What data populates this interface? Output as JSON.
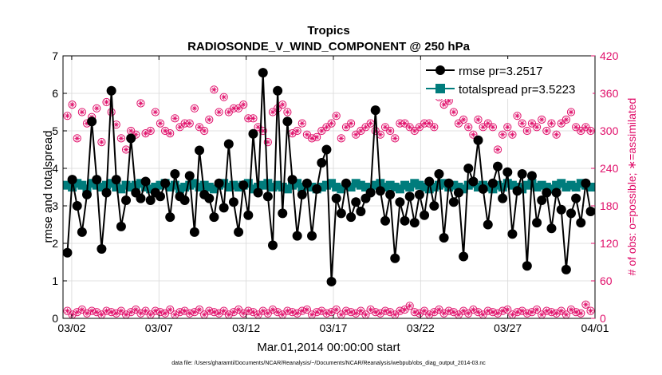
{
  "chart_data": {
    "type": "line",
    "title": "Tropics",
    "subtitle": "RADIOSONDE_V_WIND_COMPONENT @ 250 hPa",
    "xlabel": "Mar.01,2014 00:00:00 start",
    "ylabel": "rmse and totalspread",
    "ylabel_right": "# of obs: o=possible; ∗=assimilated",
    "footnote": "data file: /Users/gharamti/Documents/NCAR/Reanalysis/~/Documents/NCAR/Reanalysis/webpub/obs_diag_output_2014-03.nc",
    "xlim": [
      1.5,
      32.0
    ],
    "ylim": [
      0,
      7
    ],
    "ylim_right": [
      0,
      420
    ],
    "xticks": [
      2,
      7,
      12,
      17,
      22,
      27,
      32
    ],
    "xtick_labels": [
      "03/02",
      "03/07",
      "03/12",
      "03/17",
      "03/22",
      "03/27",
      "04/01"
    ],
    "yticks": [
      0,
      1,
      2,
      3,
      4,
      5,
      6,
      7
    ],
    "yticks_right": [
      0,
      60,
      120,
      180,
      240,
      300,
      360,
      420
    ],
    "legend_position": "top-right",
    "series": [
      {
        "name": "rmse pr=3.2517",
        "color": "#000000",
        "values": [
          1.75,
          3.7,
          3.0,
          2.3,
          3.3,
          5.25,
          3.7,
          1.85,
          3.35,
          6.07,
          3.7,
          2.45,
          3.15,
          4.8,
          3.35,
          3.2,
          3.65,
          3.15,
          3.35,
          3.25,
          3.6,
          2.7,
          3.85,
          3.25,
          3.15,
          3.8,
          2.3,
          4.48,
          3.3,
          3.2,
          2.7,
          3.6,
          2.95,
          4.65,
          3.1,
          2.3,
          3.55,
          2.75,
          4.92,
          3.35,
          6.55,
          3.25,
          1.95,
          6.07,
          2.8,
          5.25,
          3.7,
          2.2,
          3.3,
          3.6,
          2.2,
          3.45,
          4.15,
          4.5,
          0.98,
          3.2,
          2.8,
          3.6,
          2.7,
          3.1,
          2.85,
          3.2,
          3.35,
          5.55,
          3.4,
          2.6,
          3.3,
          1.6,
          3.1,
          2.6,
          3.25,
          2.55,
          3.3,
          2.75,
          3.65,
          3.0,
          3.85,
          2.15,
          3.6,
          3.1,
          3.35,
          1.65,
          4.0,
          3.65,
          4.75,
          3.45,
          2.5,
          3.6,
          4.05,
          3.2,
          3.9,
          2.25,
          3.4,
          3.85,
          1.4,
          3.8,
          2.55,
          3.15,
          3.35,
          2.4,
          3.35,
          2.9,
          1.3,
          2.8,
          3.2,
          2.55,
          3.6,
          2.85
        ]
      },
      {
        "name": "totalspread pr=3.5223",
        "color": "#007c7c",
        "values": [
          3.55,
          3.5,
          3.6,
          3.55,
          3.45,
          3.6,
          3.55,
          3.5,
          3.55,
          3.6,
          3.5,
          3.45,
          3.55,
          3.5,
          3.55,
          3.6,
          3.5,
          3.45,
          3.5,
          3.55,
          3.6,
          3.5,
          3.55,
          3.45,
          3.5,
          3.55,
          3.6,
          3.5,
          3.55,
          3.5,
          3.45,
          3.55,
          3.6,
          3.5,
          3.55,
          3.5,
          3.55,
          3.6,
          3.45,
          3.5,
          3.55,
          3.6,
          3.5,
          3.55,
          3.5,
          3.45,
          3.55,
          3.6,
          3.5,
          3.55,
          3.5,
          3.45,
          3.5,
          3.55,
          3.6,
          3.5,
          3.45,
          3.55,
          3.5,
          3.6,
          3.55,
          3.5,
          3.45,
          3.55,
          3.6,
          3.5,
          3.55,
          3.5,
          3.45,
          3.55,
          3.5,
          3.6,
          3.55,
          3.5,
          3.45,
          3.5,
          3.55,
          3.6,
          3.5,
          3.55,
          3.5,
          3.45,
          3.55,
          3.6,
          3.5,
          3.55,
          3.5,
          3.45,
          3.55,
          3.5,
          3.6,
          3.55,
          3.5,
          3.45,
          3.55,
          3.6,
          3.5,
          3.55,
          3.5,
          3.45,
          3.55,
          3.6,
          3.5,
          3.55,
          3.5,
          3.6,
          3.55,
          3.5
        ]
      },
      {
        "name": "obs possible",
        "axis": "right",
        "marker": "circle",
        "color": "#e00f6a",
        "values": [
          324,
          342,
          288,
          330,
          312,
          322,
          336,
          282,
          346,
          330,
          310,
          288,
          270,
          300,
          294,
          344,
          296,
          300,
          330,
          312,
          300,
          296,
          320,
          306,
          312,
          312,
          336,
          306,
          300,
          318,
          366,
          330,
          354,
          330,
          336,
          336,
          342,
          320,
          320,
          306,
          300,
          282,
          330,
          336,
          342,
          330,
          296,
          300,
          312,
          294,
          288,
          290,
          300,
          306,
          312,
          324,
          288,
          306,
          312,
          294,
          300,
          306,
          312,
          300,
          294,
          306,
          300,
          288,
          312,
          312,
          306,
          300,
          306,
          312,
          312,
          306,
          354,
          342,
          348,
          330,
          312,
          318,
          306,
          294,
          318,
          306,
          312,
          306,
          270,
          294,
          306,
          294,
          324,
          312,
          300,
          312,
          306,
          318,
          300,
          312,
          294,
          312,
          318,
          330,
          306,
          300,
          306,
          300
        ]
      },
      {
        "name": "obs assimilated",
        "axis": "right",
        "marker": "asterisk",
        "color": "#e00f6a",
        "values": [
          12,
          6,
          10,
          14,
          8,
          12,
          10,
          6,
          12,
          10,
          8,
          12,
          6,
          10,
          14,
          8,
          12,
          6,
          12,
          10,
          8,
          14,
          6,
          10,
          12,
          8,
          10,
          14,
          6,
          12,
          10,
          8,
          12,
          6,
          10,
          14,
          8,
          12,
          10,
          6,
          12,
          8,
          14,
          10,
          6,
          12,
          10,
          8,
          12,
          14,
          6,
          10,
          12,
          8,
          10,
          14,
          6,
          12,
          10,
          8,
          12,
          6,
          14,
          10,
          8,
          12,
          10,
          6,
          12,
          14,
          20,
          10,
          8,
          12,
          6,
          10,
          14,
          8,
          12,
          10,
          6,
          12,
          8,
          14,
          10,
          6,
          12,
          10,
          8,
          12,
          14,
          6,
          10,
          12,
          8,
          10,
          14,
          6,
          12,
          10,
          8,
          12,
          6,
          14,
          10,
          8,
          22,
          12
        ]
      }
    ]
  }
}
